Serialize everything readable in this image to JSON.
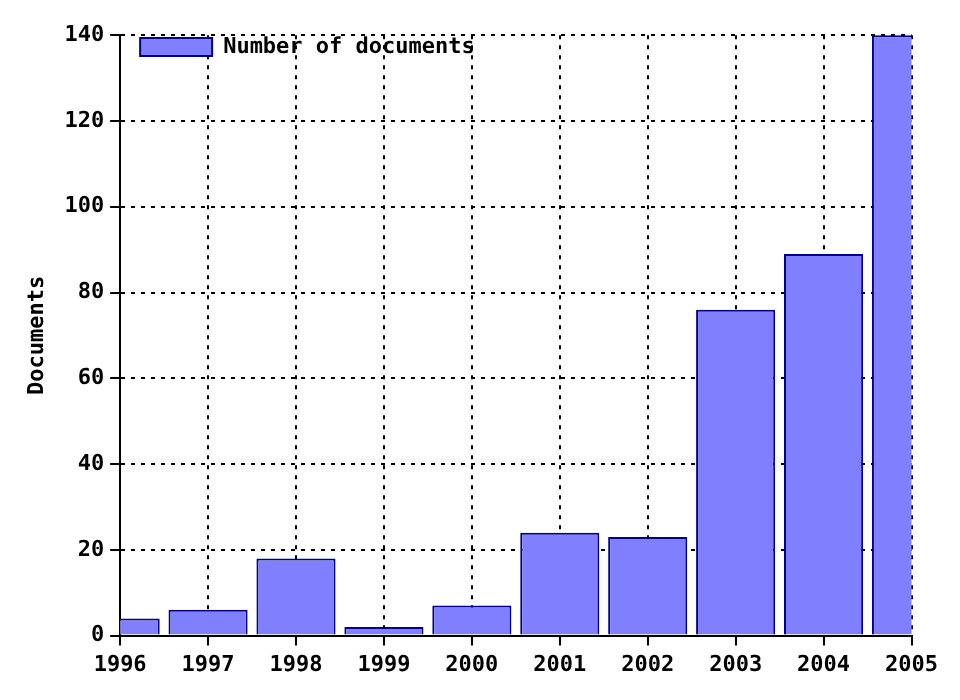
{
  "chart_data": {
    "type": "bar",
    "ylabel": "Documents",
    "categories": [
      "1996",
      "1997",
      "1998",
      "1999",
      "2000",
      "2001",
      "2002",
      "2003",
      "2004",
      "2005"
    ],
    "series": [
      {
        "name": "Number of documents",
        "color": "#8080ff",
        "values": [
          4,
          6,
          18,
          2,
          7,
          24,
          23,
          76,
          89,
          140
        ]
      }
    ],
    "ylim": [
      0,
      140
    ],
    "yticks": [
      0,
      20,
      40,
      60,
      80,
      100,
      120,
      140
    ],
    "grid": true,
    "legend": "top left"
  }
}
